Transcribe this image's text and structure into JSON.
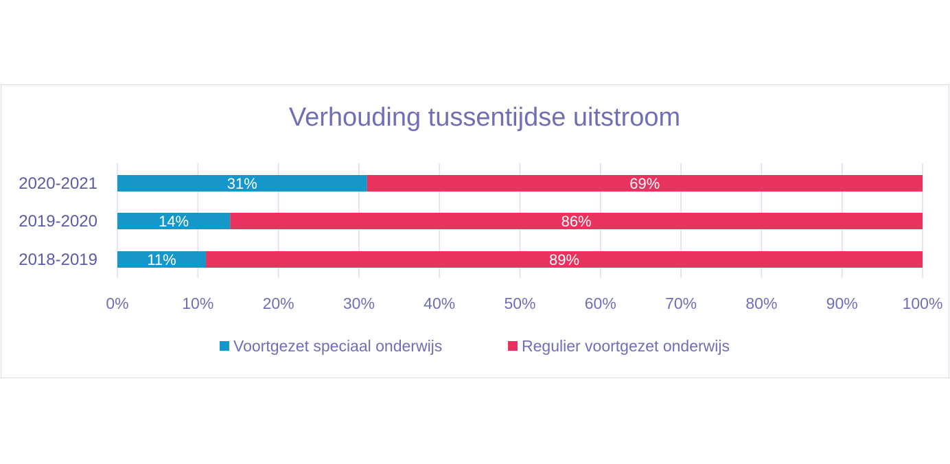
{
  "chart_data": {
    "type": "bar",
    "orientation": "horizontal",
    "stacked": "percent",
    "title": "Verhouding tussentijdse uitstroom",
    "categories": [
      "2020-2021",
      "2019-2020",
      "2018-2019"
    ],
    "series": [
      {
        "name": "Voortgezet speciaal onderwijs",
        "values": [
          31,
          14,
          11
        ],
        "labels": [
          "31%",
          "14%",
          "11%"
        ],
        "color": "#1597c9"
      },
      {
        "name": "Regulier voortgezet onderwijs",
        "values": [
          69,
          86,
          89
        ],
        "labels": [
          "69%",
          "86%",
          "89%"
        ],
        "color": "#e8335e"
      }
    ],
    "xlim": [
      0,
      100
    ],
    "xticks": [
      "0%",
      "10%",
      "20%",
      "30%",
      "40%",
      "50%",
      "60%",
      "70%",
      "80%",
      "90%",
      "100%"
    ],
    "grid": true,
    "legend": "bottom"
  }
}
